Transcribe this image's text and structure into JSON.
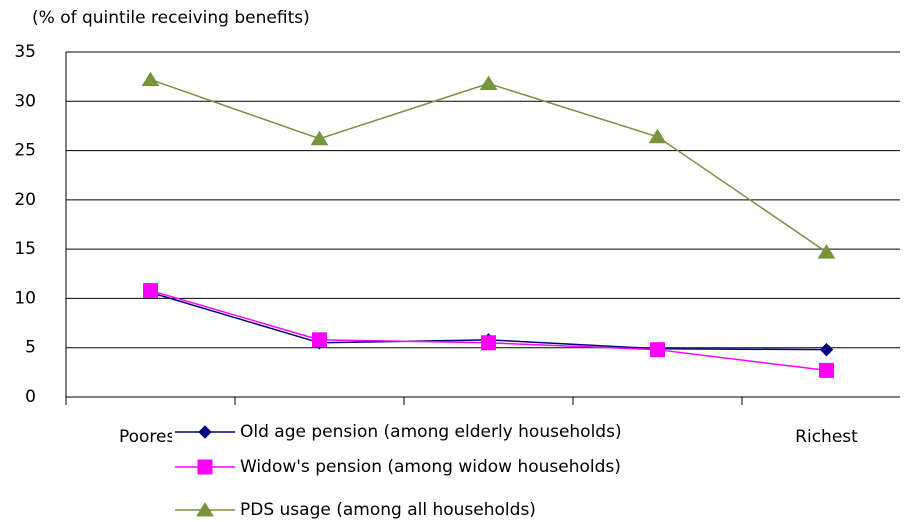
{
  "chart_data": {
    "type": "line",
    "y_label": "(% of quintile receiving benefits)",
    "categories": [
      "Poorest",
      null,
      null,
      null,
      "Richest"
    ],
    "series": [
      {
        "name": "Old age pension (among elderly households)",
        "color": "#000080",
        "marker": "diamond",
        "values": [
          10.6,
          5.5,
          5.8,
          4.9,
          4.8
        ]
      },
      {
        "name": "Widow's pension (among widow households)",
        "color": "#ff00ff",
        "marker": "square",
        "values": [
          10.8,
          5.8,
          5.5,
          4.8,
          2.7
        ]
      },
      {
        "name": "PDS usage (among all households)",
        "color": "#77933c",
        "marker": "triangle",
        "values": [
          32.2,
          26.2,
          31.8,
          26.4,
          14.7
        ]
      }
    ],
    "ylim": [
      0,
      35
    ],
    "yticks": [
      0,
      5,
      10,
      15,
      20,
      25,
      30,
      35
    ],
    "grid": true,
    "legend": "bottom"
  }
}
